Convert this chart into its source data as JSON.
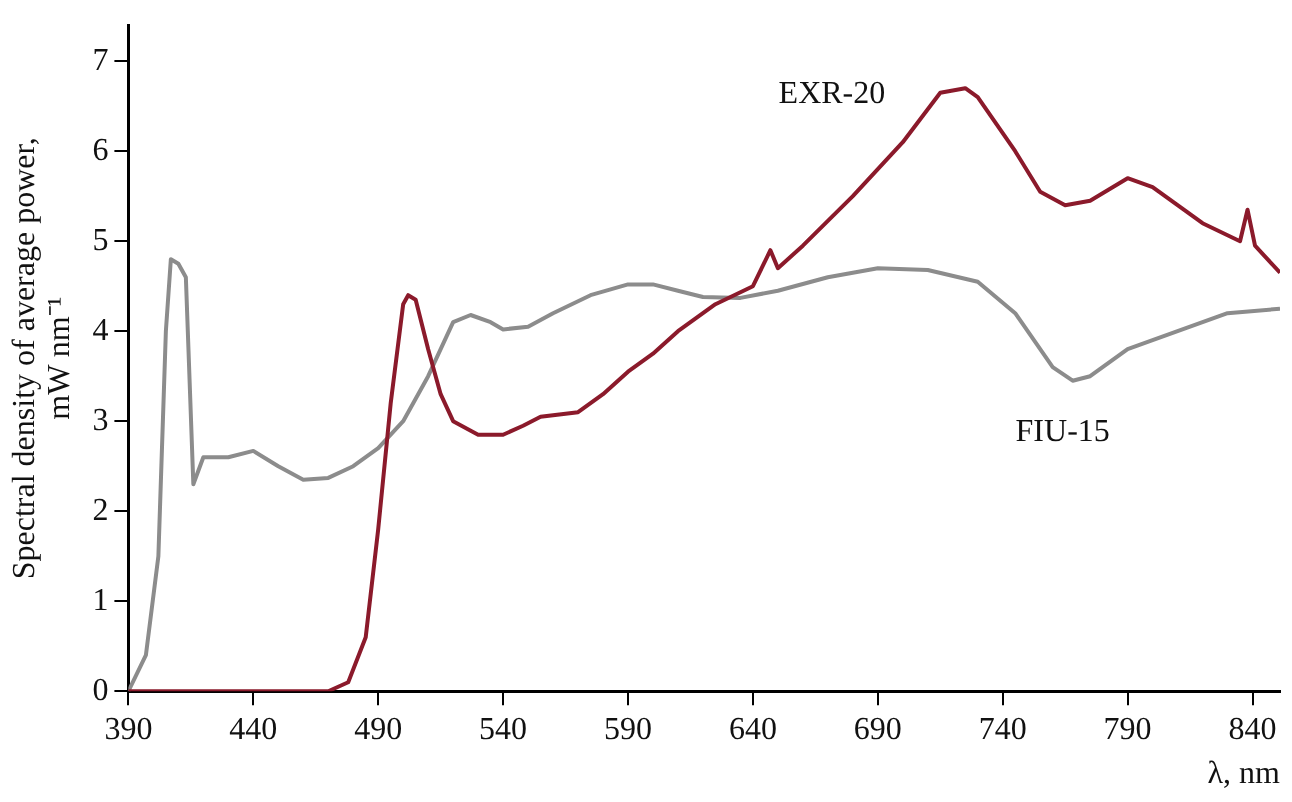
{
  "chart_data": {
    "type": "line",
    "xlabel": "λ, nm",
    "ylabel": "Spectral density of average power, mW nm⁻¹",
    "xlim": [
      390,
      851
    ],
    "ylim": [
      0,
      7.4
    ],
    "xticks": [
      390,
      440,
      490,
      540,
      590,
      640,
      690,
      740,
      790,
      840
    ],
    "yticks": [
      0,
      1,
      2,
      3,
      4,
      5,
      6,
      7
    ],
    "grid": false,
    "legend": false,
    "marker": "none",
    "line_style": "solid",
    "series": [
      {
        "name": "EXR-20",
        "color": "#8b1a2b",
        "x": [
          390,
          470,
          478,
          485,
          490,
          495,
          500,
          502,
          505,
          510,
          515,
          520,
          530,
          540,
          548,
          555,
          570,
          580,
          590,
          600,
          610,
          625,
          640,
          647,
          650,
          660,
          680,
          700,
          715,
          725,
          730,
          745,
          755,
          765,
          775,
          790,
          800,
          820,
          835,
          838,
          841,
          851
        ],
        "values": [
          0,
          0,
          0.1,
          0.6,
          1.8,
          3.2,
          4.3,
          4.4,
          4.35,
          3.8,
          3.3,
          3.0,
          2.85,
          2.85,
          2.95,
          3.05,
          3.1,
          3.3,
          3.55,
          3.75,
          4.0,
          4.3,
          4.5,
          4.9,
          4.7,
          4.95,
          5.5,
          6.1,
          6.65,
          6.7,
          6.6,
          6.0,
          5.55,
          5.4,
          5.45,
          5.7,
          5.6,
          5.2,
          5.0,
          5.35,
          4.95,
          4.65
        ]
      },
      {
        "name": "FIU-15",
        "color": "#8c8c8c",
        "x": [
          390,
          397,
          402,
          405,
          407,
          410,
          413,
          416,
          420,
          430,
          440,
          450,
          460,
          470,
          480,
          490,
          500,
          510,
          520,
          527,
          535,
          540,
          550,
          560,
          575,
          590,
          600,
          610,
          620,
          635,
          650,
          670,
          690,
          710,
          730,
          745,
          760,
          768,
          775,
          790,
          810,
          830,
          851
        ],
        "values": [
          0,
          0.4,
          1.5,
          4,
          4.8,
          4.75,
          4.6,
          2.3,
          2.6,
          2.6,
          2.67,
          2.5,
          2.35,
          2.37,
          2.5,
          2.7,
          3.0,
          3.5,
          4.1,
          4.18,
          4.1,
          4.02,
          4.05,
          4.2,
          4.4,
          4.52,
          4.52,
          4.45,
          4.38,
          4.37,
          4.45,
          4.6,
          4.7,
          4.68,
          4.55,
          4.2,
          3.6,
          3.45,
          3.5,
          3.8,
          4.0,
          4.2,
          4.25
        ]
      }
    ]
  }
}
